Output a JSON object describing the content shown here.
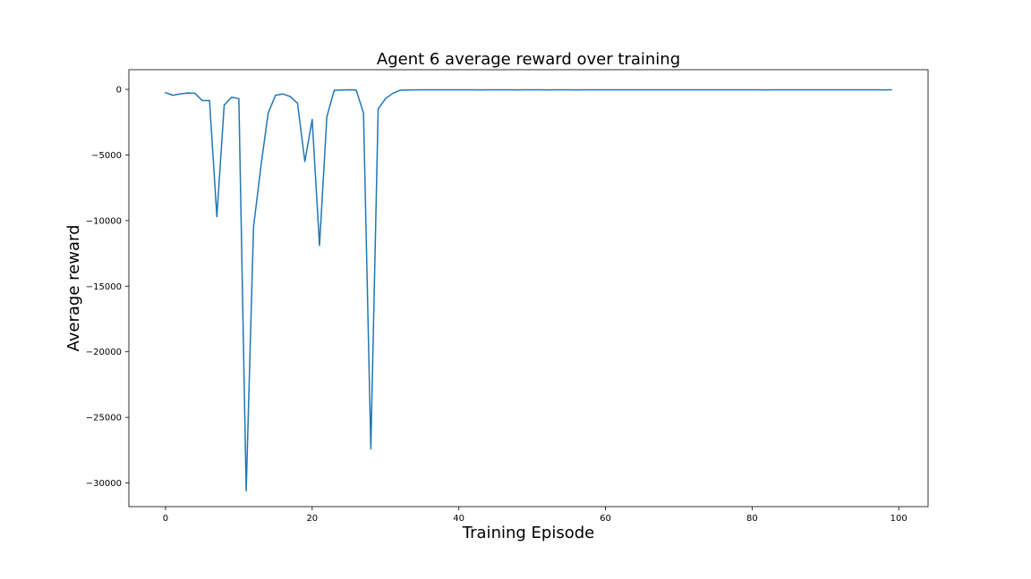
{
  "chart_data": {
    "type": "line",
    "title": "Agent 6 average reward over training",
    "xlabel": "Training Episode",
    "ylabel": "Average reward",
    "xlim": [
      -5,
      104
    ],
    "ylim": [
      -31800,
      1500
    ],
    "xticks": [
      0,
      20,
      40,
      60,
      80,
      100
    ],
    "yticks": [
      0,
      -5000,
      -10000,
      -15000,
      -20000,
      -25000,
      -30000
    ],
    "xtick_labels": [
      "0",
      "20",
      "40",
      "60",
      "80",
      "100"
    ],
    "ytick_labels": [
      "0",
      "−5000",
      "−10000",
      "−15000",
      "−20000",
      "−25000",
      "−30000"
    ],
    "grid": false,
    "color": "#1f77b4",
    "series": [
      {
        "x": [
          0,
          1,
          2,
          3,
          4,
          5,
          6,
          7,
          8,
          9,
          10,
          11,
          12,
          13,
          14,
          15,
          16,
          17,
          18,
          19,
          20,
          21,
          22,
          23,
          24,
          25,
          26,
          27,
          28,
          29,
          30,
          31,
          32,
          33,
          34,
          35,
          36,
          37,
          38,
          39,
          40,
          41,
          42,
          43,
          44,
          45,
          46,
          47,
          48,
          49,
          50,
          51,
          52,
          53,
          54,
          55,
          56,
          57,
          58,
          59,
          60,
          61,
          62,
          63,
          64,
          65,
          66,
          67,
          68,
          69,
          70,
          71,
          72,
          73,
          74,
          75,
          76,
          77,
          78,
          79,
          80,
          81,
          82,
          83,
          84,
          85,
          86,
          87,
          88,
          89,
          90,
          91,
          92,
          93,
          94,
          95,
          96,
          97,
          98,
          99
        ],
        "values": [
          -250,
          -450,
          -350,
          -280,
          -300,
          -850,
          -850,
          -9700,
          -1200,
          -600,
          -700,
          -30600,
          -10500,
          -5900,
          -1800,
          -450,
          -350,
          -550,
          -1050,
          -5500,
          -2300,
          -11900,
          -2100,
          -70,
          -50,
          -30,
          -50,
          -1800,
          -27400,
          -1500,
          -700,
          -300,
          -70,
          -50,
          -40,
          -30,
          -30,
          -30,
          -30,
          -30,
          -35,
          -30,
          -30,
          -40,
          -30,
          -35,
          -30,
          -30,
          -40,
          -30,
          -30,
          -35,
          -40,
          -30,
          -30,
          -30,
          -40,
          -30,
          -30,
          -30,
          -30,
          -30,
          -35,
          -30,
          -30,
          -30,
          -30,
          -30,
          -30,
          -30,
          -30,
          -30,
          -30,
          -30,
          -35,
          -30,
          -30,
          -30,
          -30,
          -30,
          -30,
          -30,
          -40,
          -30,
          -30,
          -30,
          -30,
          -30,
          -30,
          -30,
          -30,
          -30,
          -30,
          -30,
          -30,
          -30,
          -30,
          -30,
          -40,
          -30
        ]
      }
    ]
  }
}
